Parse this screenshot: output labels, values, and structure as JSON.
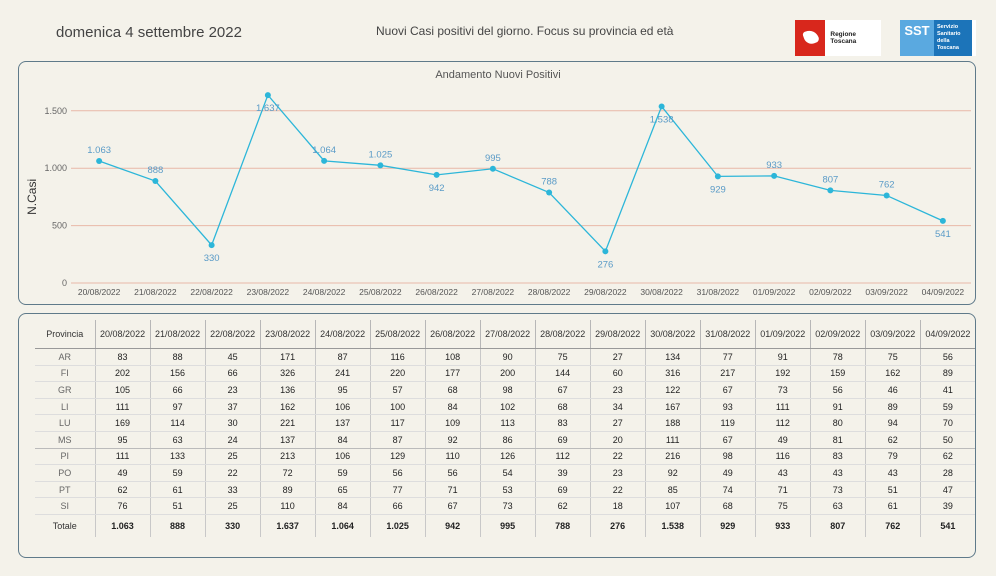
{
  "header": {
    "date": "domenica 4 settembre 2022",
    "subtitle": "Nuovi Casi positivi del giorno. Focus su provincia ed età",
    "logo_regione": "Regione Toscana",
    "logo_sst_mark": "SST",
    "logo_sst_text": "Servizio Sanitario della Toscana"
  },
  "colors": {
    "line": "#2cb6d9",
    "gridline": "#e8b8a8",
    "label": "#5a9bc7"
  },
  "chart_data": {
    "type": "line",
    "title": "Andamento Nuovi Positivi",
    "ylabel": "N.Casi",
    "xlabel": "",
    "categories": [
      "20/08/2022",
      "21/08/2022",
      "22/08/2022",
      "23/08/2022",
      "24/08/2022",
      "25/08/2022",
      "26/08/2022",
      "27/08/2022",
      "28/08/2022",
      "29/08/2022",
      "30/08/2022",
      "31/08/2022",
      "01/09/2022",
      "02/09/2022",
      "03/09/2022",
      "04/09/2022"
    ],
    "values": [
      1063,
      888,
      330,
      1637,
      1064,
      1025,
      942,
      995,
      788,
      276,
      1538,
      929,
      933,
      807,
      762,
      541
    ],
    "value_labels": [
      "1.063",
      "888",
      "330",
      "1.637",
      "1.064",
      "1.025",
      "942",
      "995",
      "788",
      "276",
      "1.538",
      "929",
      "933",
      "807",
      "762",
      "541"
    ],
    "label_positions": [
      "above",
      "above",
      "below",
      "below",
      "above",
      "above",
      "below",
      "above",
      "above",
      "below",
      "below",
      "below",
      "above",
      "above",
      "above",
      "below"
    ],
    "yticks": [
      0,
      500,
      1000,
      1500
    ],
    "ytick_labels": [
      "0",
      "500",
      "1.000",
      "1.500"
    ],
    "ylim": [
      0,
      1700
    ],
    "grid": true,
    "legend": "none"
  },
  "table": {
    "header": "Provincia",
    "dates": [
      "20/08/2022",
      "21/08/2022",
      "22/08/2022",
      "23/08/2022",
      "24/08/2022",
      "25/08/2022",
      "26/08/2022",
      "27/08/2022",
      "28/08/2022",
      "29/08/2022",
      "30/08/2022",
      "31/08/2022",
      "01/09/2022",
      "02/09/2022",
      "03/09/2022",
      "04/09/2022"
    ],
    "rows": [
      {
        "prov": "AR",
        "values": [
          "83",
          "88",
          "45",
          "171",
          "87",
          "116",
          "108",
          "90",
          "75",
          "27",
          "134",
          "77",
          "91",
          "78",
          "75",
          "56"
        ]
      },
      {
        "prov": "FI",
        "values": [
          "202",
          "156",
          "66",
          "326",
          "241",
          "220",
          "177",
          "200",
          "144",
          "60",
          "316",
          "217",
          "192",
          "159",
          "162",
          "89"
        ]
      },
      {
        "prov": "GR",
        "values": [
          "105",
          "66",
          "23",
          "136",
          "95",
          "57",
          "68",
          "98",
          "67",
          "23",
          "122",
          "67",
          "73",
          "56",
          "46",
          "41"
        ]
      },
      {
        "prov": "LI",
        "values": [
          "111",
          "97",
          "37",
          "162",
          "106",
          "100",
          "84",
          "102",
          "68",
          "34",
          "167",
          "93",
          "111",
          "91",
          "89",
          "59"
        ]
      },
      {
        "prov": "LU",
        "values": [
          "169",
          "114",
          "30",
          "221",
          "137",
          "117",
          "109",
          "113",
          "83",
          "27",
          "188",
          "119",
          "112",
          "80",
          "94",
          "70"
        ]
      },
      {
        "prov": "MS",
        "values": [
          "95",
          "63",
          "24",
          "137",
          "84",
          "87",
          "92",
          "86",
          "69",
          "20",
          "111",
          "67",
          "49",
          "81",
          "62",
          "50"
        ]
      },
      {
        "prov": "PI",
        "values": [
          "111",
          "133",
          "25",
          "213",
          "106",
          "129",
          "110",
          "126",
          "112",
          "22",
          "216",
          "98",
          "116",
          "83",
          "79",
          "62"
        ]
      },
      {
        "prov": "PO",
        "values": [
          "49",
          "59",
          "22",
          "72",
          "59",
          "56",
          "56",
          "54",
          "39",
          "23",
          "92",
          "49",
          "43",
          "43",
          "43",
          "28"
        ]
      },
      {
        "prov": "PT",
        "values": [
          "62",
          "61",
          "33",
          "89",
          "65",
          "77",
          "71",
          "53",
          "69",
          "22",
          "85",
          "74",
          "71",
          "73",
          "51",
          "47"
        ]
      },
      {
        "prov": "SI",
        "values": [
          "76",
          "51",
          "25",
          "110",
          "84",
          "66",
          "67",
          "73",
          "62",
          "18",
          "107",
          "68",
          "75",
          "63",
          "61",
          "39"
        ]
      }
    ],
    "total": {
      "prov": "Totale",
      "values": [
        "1.063",
        "888",
        "330",
        "1.637",
        "1.064",
        "1.025",
        "942",
        "995",
        "788",
        "276",
        "1.538",
        "929",
        "933",
        "807",
        "762",
        "541"
      ]
    }
  }
}
